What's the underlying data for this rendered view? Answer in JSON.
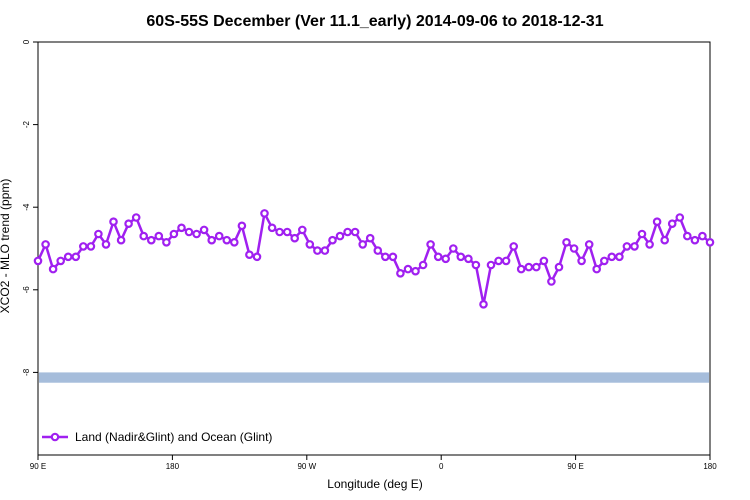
{
  "chart_data": {
    "type": "line",
    "title": "60S-55S December (Ver 11.1_early)   2014-09-06 to 2018-12-31",
    "xlabel": "Longitude (deg E)",
    "ylabel": "XCO2 - MLO trend (ppm)",
    "x_ticks": [
      "90 E",
      "180",
      "90 W",
      "0",
      "90 E",
      "180"
    ],
    "y_ticks": [
      "0",
      "-2",
      "-4",
      "-6",
      "-8"
    ],
    "y_tick_values": [
      0,
      -2,
      -4,
      -6,
      -8
    ],
    "ylim": [
      -10,
      0
    ],
    "band": {
      "y_range": [
        -8.25,
        -8.0
      ],
      "color": "#a6bddb"
    },
    "grid": false,
    "legend_position": "bottom-left",
    "series": [
      {
        "name": "Land (Nadir&Glint) and Ocean (Glint)",
        "color": "#a020f0",
        "values": [
          -5.3,
          -4.9,
          -5.5,
          -5.3,
          -5.2,
          -5.2,
          -4.95,
          -4.95,
          -4.65,
          -4.9,
          -4.35,
          -4.8,
          -4.4,
          -4.25,
          -4.7,
          -4.8,
          -4.7,
          -4.85,
          -4.65,
          -4.5,
          -4.6,
          -4.65,
          -4.55,
          -4.8,
          -4.7,
          -4.8,
          -4.85,
          -4.45,
          -5.15,
          -5.2,
          -4.15,
          -4.5,
          -4.6,
          -4.6,
          -4.75,
          -4.55,
          -4.9,
          -5.05,
          -5.05,
          -4.8,
          -4.7,
          -4.6,
          -4.6,
          -4.9,
          -4.75,
          -5.05,
          -5.2,
          -5.2,
          -5.6,
          -5.5,
          -5.55,
          -5.4,
          -4.9,
          -5.2,
          -5.25,
          -5.0,
          -5.2,
          -5.25,
          -5.4,
          -6.35,
          -5.4,
          -5.3,
          -5.3,
          -4.95,
          -5.5,
          -5.45,
          -5.45,
          -5.3,
          -5.8,
          -5.45,
          -4.85,
          -5.0,
          -5.3,
          -4.9,
          -5.5,
          -5.3,
          -5.2,
          -5.2,
          -4.95,
          -4.95,
          -4.65,
          -4.9,
          -4.35,
          -4.8,
          -4.4,
          -4.25,
          -4.7,
          -4.8,
          -4.7,
          -4.85
        ]
      }
    ]
  }
}
